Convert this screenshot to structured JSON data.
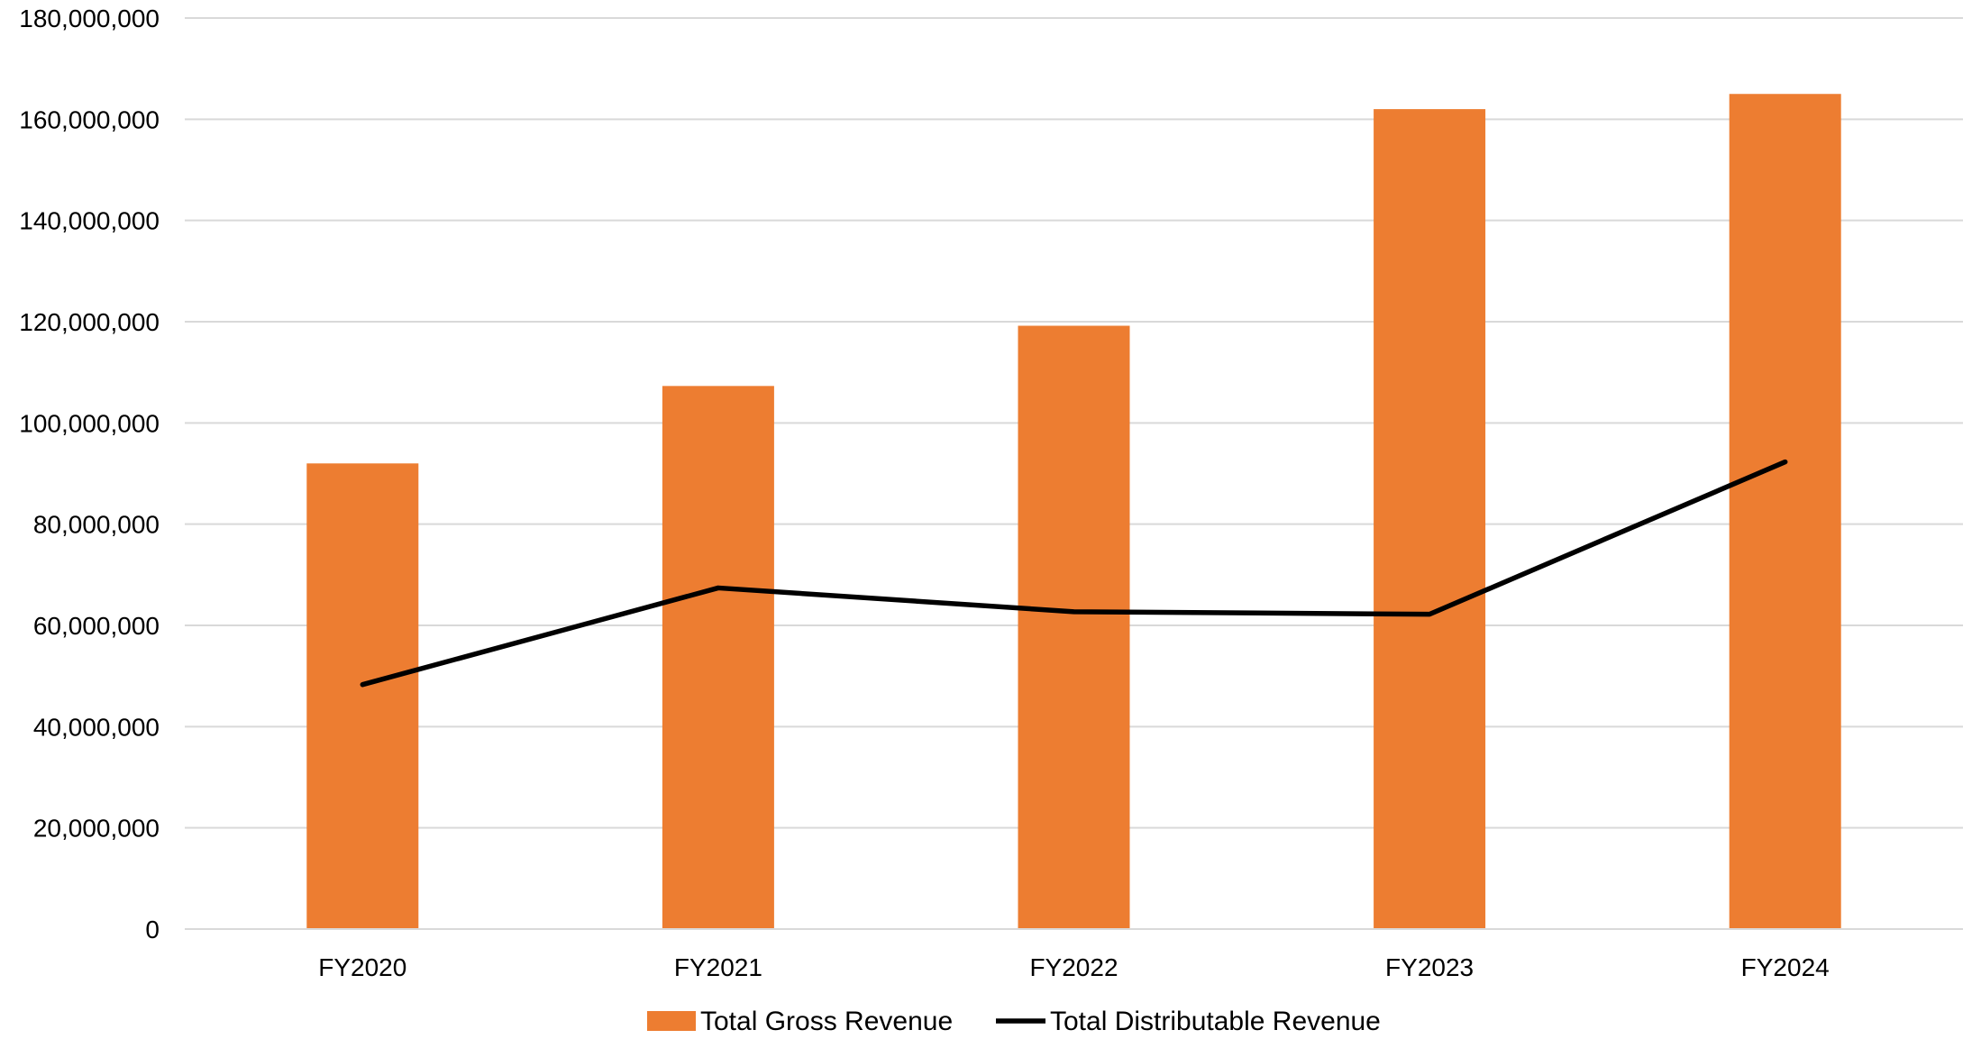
{
  "chart_data": {
    "type": "bar",
    "categories": [
      "FY2020",
      "FY2021",
      "FY2022",
      "FY2023",
      "FY2024"
    ],
    "series": [
      {
        "name": "Total Gross Revenue",
        "type": "bar",
        "color": "#ED7D31",
        "values": [
          92000000,
          107300000,
          119200000,
          162000000,
          165000000
        ]
      },
      {
        "name": "Total Distributable Revenue",
        "type": "line",
        "color": "#000000",
        "values": [
          48300000,
          67400000,
          62700000,
          62200000,
          92300000
        ]
      }
    ],
    "y_ticks": [
      "0",
      "20,000,000",
      "40,000,000",
      "60,000,000",
      "80,000,000",
      "100,000,000",
      "120,000,000",
      "140,000,000",
      "160,000,000",
      "180,000,000"
    ],
    "ylim": [
      0,
      180000000
    ],
    "y_step": 20000000,
    "grid": true,
    "legend_position": "bottom"
  }
}
